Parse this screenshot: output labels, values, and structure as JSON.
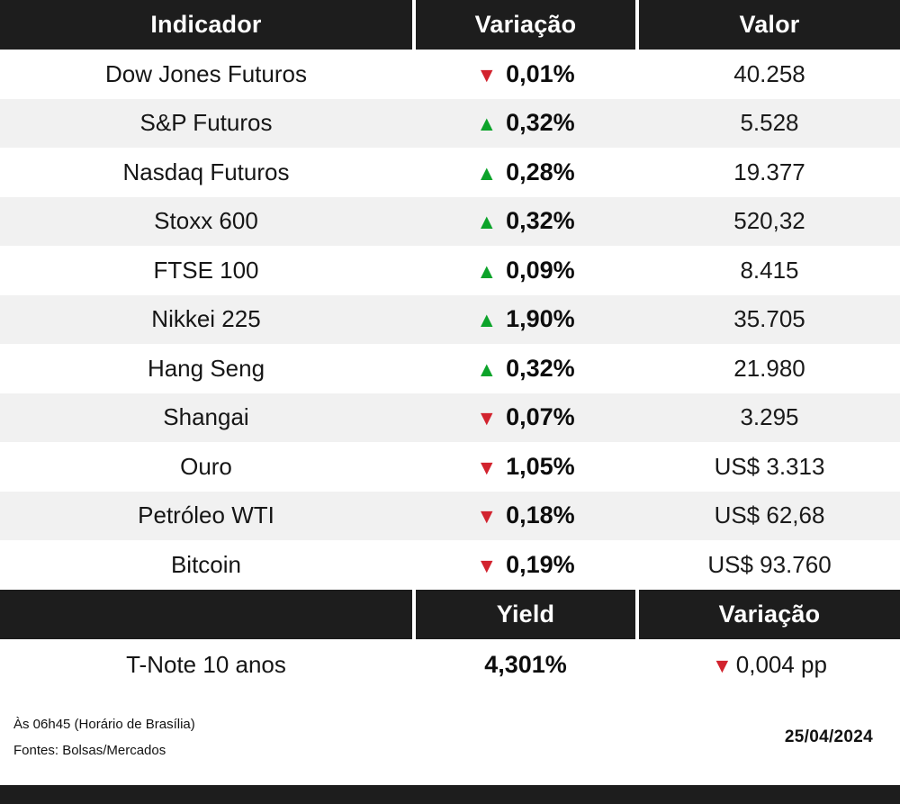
{
  "colors": {
    "up": "#0ca32a",
    "down": "#d2232e",
    "header_bg": "#1d1d1d",
    "row_alt_bg": "#f1f1f1"
  },
  "icons": {
    "up": "▲",
    "down": "▼"
  },
  "table": {
    "headers": [
      "Indicador",
      "Variação",
      "Valor"
    ],
    "rows": [
      {
        "indicator": "Dow Jones Futuros",
        "direction": "down",
        "variation": "0,01%",
        "value": "40.258"
      },
      {
        "indicator": "S&P Futuros",
        "direction": "up",
        "variation": "0,32%",
        "value": "5.528"
      },
      {
        "indicator": "Nasdaq Futuros",
        "direction": "up",
        "variation": "0,28%",
        "value": "19.377"
      },
      {
        "indicator": "Stoxx 600",
        "direction": "up",
        "variation": "0,32%",
        "value": "520,32"
      },
      {
        "indicator": "FTSE 100",
        "direction": "up",
        "variation": "0,09%",
        "value": "8.415"
      },
      {
        "indicator": "Nikkei 225",
        "direction": "up",
        "variation": "1,90%",
        "value": "35.705"
      },
      {
        "indicator": "Hang Seng",
        "direction": "up",
        "variation": "0,32%",
        "value": "21.980"
      },
      {
        "indicator": "Shangai",
        "direction": "down",
        "variation": "0,07%",
        "value": "3.295"
      },
      {
        "indicator": "Ouro",
        "direction": "down",
        "variation": "1,05%",
        "value": "US$ 3.313"
      },
      {
        "indicator": "Petróleo WTI",
        "direction": "down",
        "variation": "0,18%",
        "value": "US$ 62,68"
      },
      {
        "indicator": "Bitcoin",
        "direction": "down",
        "variation": "0,19%",
        "value": "US$ 93.760"
      }
    ],
    "bond_headers": [
      "",
      "Yield",
      "Variação"
    ],
    "bond_row": {
      "indicator": "T-Note 10 anos",
      "yield": "4,301%",
      "direction": "down",
      "variation": "0,004 pp"
    }
  },
  "footer": {
    "time_note": "Às 06h45 (Horário de Brasília)",
    "sources": "Fontes: Bolsas/Mercados",
    "date": "25/04/2024"
  },
  "chart_data": {
    "type": "table",
    "title": "Indicadores de mercado",
    "columns": [
      "Indicador",
      "Variação",
      "Valor"
    ],
    "rows": [
      [
        "Dow Jones Futuros",
        "-0,01%",
        "40.258"
      ],
      [
        "S&P Futuros",
        "+0,32%",
        "5.528"
      ],
      [
        "Nasdaq Futuros",
        "+0,28%",
        "19.377"
      ],
      [
        "Stoxx 600",
        "+0,32%",
        "520,32"
      ],
      [
        "FTSE 100",
        "+0,09%",
        "8.415"
      ],
      [
        "Nikkei 225",
        "+1,90%",
        "35.705"
      ],
      [
        "Hang Seng",
        "+0,32%",
        "21.980"
      ],
      [
        "Shangai",
        "-0,07%",
        "3.295"
      ],
      [
        "Ouro",
        "-1,05%",
        "US$ 3.313"
      ],
      [
        "Petróleo WTI",
        "-0,18%",
        "US$ 62,68"
      ],
      [
        "Bitcoin",
        "-0,19%",
        "US$ 93.760"
      ]
    ],
    "secondary_columns": [
      "",
      "Yield",
      "Variação"
    ],
    "secondary_rows": [
      [
        "T-Note 10 anos",
        "4,301%",
        "-0,004 pp"
      ]
    ]
  }
}
